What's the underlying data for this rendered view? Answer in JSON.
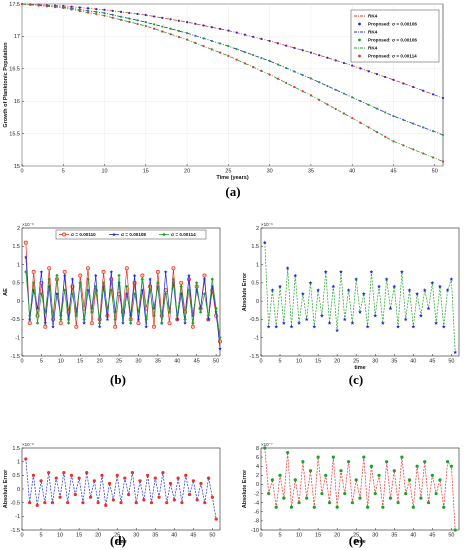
{
  "chart_data": [
    {
      "panel": "(a)",
      "type": "line",
      "xlabel": "Time (years)",
      "ylabel": "Growth of Planktonic Population",
      "xlim": [
        0,
        51
      ],
      "ylim": [
        15,
        17.5
      ],
      "xticks": [
        "0",
        "5",
        "10",
        "15",
        "20",
        "25",
        "30",
        "35",
        "40",
        "45",
        "50"
      ],
      "yticks": [
        "15",
        "15.5",
        "16",
        "16.5",
        "17",
        "17.5"
      ],
      "legend_position": "top-right",
      "grid": true,
      "x": [
        0,
        5,
        10,
        15,
        20,
        25,
        30,
        35,
        40,
        45,
        51
      ],
      "series": [
        {
          "name": "RK4",
          "color": "#e8302a",
          "style": "dashdot",
          "values": [
            17.5,
            17.47,
            17.41,
            17.33,
            17.22,
            17.09,
            16.93,
            16.75,
            16.55,
            16.33,
            16.05
          ]
        },
        {
          "name": "Proposed: σ = 0.00106",
          "color": "#1f2ad6",
          "style": "marker",
          "values": [
            17.5,
            17.47,
            17.41,
            17.33,
            17.22,
            17.09,
            16.93,
            16.75,
            16.55,
            16.33,
            16.05
          ]
        },
        {
          "name": "RK4",
          "color": "#1f2ad6",
          "style": "dashdot",
          "values": [
            17.5,
            17.45,
            17.36,
            17.22,
            17.05,
            16.85,
            16.62,
            16.35,
            16.06,
            15.77,
            15.48
          ]
        },
        {
          "name": "Proposed: σ = 0.00106",
          "color": "#1fa02a",
          "style": "marker",
          "values": [
            17.5,
            17.45,
            17.36,
            17.22,
            17.05,
            16.85,
            16.62,
            16.35,
            16.06,
            15.77,
            15.48
          ]
        },
        {
          "name": "RK4",
          "color": "#1fa02a",
          "style": "dashdot",
          "values": [
            17.5,
            17.44,
            17.32,
            17.16,
            16.95,
            16.7,
            16.41,
            16.09,
            15.74,
            15.38,
            15.07
          ]
        },
        {
          "name": "Proposed: σ = 0.00114",
          "color": "#e8302a",
          "style": "marker",
          "values": [
            17.5,
            17.44,
            17.32,
            17.16,
            16.95,
            16.7,
            16.41,
            16.09,
            15.74,
            15.38,
            15.07
          ]
        }
      ]
    },
    {
      "panel": "(b)",
      "type": "line",
      "xlabel": "",
      "ylabel": "AE",
      "exponent": "×10⁻⁶",
      "xlim": [
        0,
        51
      ],
      "ylim": [
        -1.5,
        2
      ],
      "xticks": [
        "0",
        "5",
        "10",
        "15",
        "20",
        "25",
        "30",
        "35",
        "40",
        "45",
        "50"
      ],
      "yticks": [
        "-1.5",
        "-1",
        "-0.5",
        "0",
        "0.5",
        "1",
        "1.5",
        "2"
      ],
      "legend_position": "top",
      "x": [
        1,
        2,
        3,
        4,
        5,
        6,
        7,
        8,
        9,
        10,
        11,
        12,
        13,
        14,
        15,
        16,
        17,
        18,
        19,
        20,
        21,
        22,
        23,
        24,
        25,
        26,
        27,
        28,
        29,
        30,
        31,
        32,
        33,
        34,
        35,
        36,
        37,
        38,
        39,
        40,
        41,
        42,
        43,
        44,
        45,
        46,
        47,
        48,
        49,
        50,
        51
      ],
      "series": [
        {
          "name": "σ = 0.00110",
          "color": "#e8302a",
          "values": [
            1.6,
            -0.6,
            0.8,
            -0.4,
            0.5,
            -0.7,
            0.9,
            -0.5,
            0.6,
            -0.6,
            0.8,
            -0.3,
            0.4,
            -0.7,
            0.7,
            -0.2,
            0.9,
            -0.6,
            0.3,
            -0.5,
            0.8,
            -0.4,
            0.6,
            -0.7,
            0.2,
            -0.3,
            0.9,
            -0.5,
            0.5,
            -0.6,
            0.7,
            -0.2,
            0.4,
            -0.7,
            0.8,
            -0.4,
            0.3,
            -0.6,
            0.9,
            -0.5,
            0.5,
            -0.3,
            0.6,
            -0.7,
            0.4,
            -0.2,
            0.7,
            -0.5,
            0.3,
            -0.4,
            -1.1
          ]
        },
        {
          "name": "σ = 0.00108",
          "color": "#1f2ad6",
          "values": [
            1.2,
            -0.5,
            0.3,
            -0.2,
            0.8,
            -0.6,
            0.4,
            -0.7,
            0.2,
            -0.4,
            0.7,
            -0.5,
            0.6,
            -0.3,
            0.5,
            -0.6,
            0.3,
            -0.2,
            0.7,
            -0.7,
            0.4,
            -0.5,
            0.8,
            -0.3,
            0.5,
            -0.6,
            0.2,
            -0.4,
            0.7,
            -0.5,
            0.3,
            -0.7,
            0.6,
            -0.2,
            0.4,
            -0.6,
            0.8,
            -0.3,
            0.5,
            -0.5,
            0.2,
            -0.6,
            0.7,
            -0.4,
            0.3,
            -0.2,
            0.6,
            -0.5,
            0.4,
            -0.3,
            -1.3
          ]
        },
        {
          "name": "σ = 0.00114",
          "color": "#1fa02a",
          "values": [
            0.8,
            -0.4,
            0.5,
            -0.6,
            0.2,
            -0.3,
            0.6,
            -0.4,
            0.7,
            -0.5,
            0.3,
            -0.6,
            0.2,
            -0.4,
            0.5,
            -0.5,
            0.6,
            -0.3,
            0.4,
            -0.6,
            0.5,
            -0.2,
            0.3,
            -0.5,
            0.7,
            -0.4,
            0.4,
            -0.6,
            0.2,
            -0.3,
            0.6,
            -0.5,
            0.3,
            -0.4,
            0.5,
            -0.6,
            0.2,
            -0.3,
            0.6,
            -0.4,
            0.4,
            -0.5,
            0.3,
            -0.6,
            0.5,
            -0.3,
            0.2,
            -0.4,
            0.6,
            -0.2,
            -1.0
          ]
        }
      ]
    },
    {
      "panel": "(c)",
      "type": "line",
      "xlabel": "time",
      "ylabel": "Absolute Error",
      "exponent": "×10⁻⁶",
      "xlim": [
        0,
        52
      ],
      "ylim": [
        -1.5,
        2
      ],
      "xticks": [
        "0",
        "5",
        "10",
        "15",
        "20",
        "25",
        "30",
        "35",
        "40",
        "45",
        "50"
      ],
      "yticks": [
        "-1.5",
        "-1",
        "-0.5",
        "0",
        "0.5",
        "1",
        "1.5",
        "2"
      ],
      "marker_color": "#1f2ad6",
      "line_color": "#1fa02a",
      "x": [
        1,
        2,
        3,
        4,
        5,
        6,
        7,
        8,
        9,
        10,
        11,
        12,
        13,
        14,
        15,
        16,
        17,
        18,
        19,
        20,
        21,
        22,
        23,
        24,
        25,
        26,
        27,
        28,
        29,
        30,
        31,
        32,
        33,
        34,
        35,
        36,
        37,
        38,
        39,
        40,
        41,
        42,
        43,
        44,
        45,
        46,
        47,
        48,
        49,
        50,
        51
      ],
      "values": [
        1.6,
        -0.7,
        0.3,
        -0.7,
        0.4,
        -0.6,
        0.9,
        -0.7,
        0.7,
        -0.6,
        0.2,
        -0.5,
        0.5,
        -0.7,
        0.3,
        -0.4,
        0.8,
        -0.6,
        0.4,
        -0.8,
        0.8,
        -0.5,
        0.3,
        -0.6,
        0.6,
        -0.3,
        0.2,
        -0.7,
        0.8,
        -0.4,
        0.4,
        -0.6,
        0.6,
        -0.2,
        0.4,
        -0.7,
        0.8,
        -0.5,
        0.3,
        -0.7,
        0.2,
        -0.4,
        0.3,
        -0.2,
        0.5,
        -0.6,
        0.4,
        -0.7,
        0.3,
        0.6,
        -1.4
      ]
    },
    {
      "panel": "(d)",
      "type": "line",
      "xlabel": "time",
      "ylabel": "Absolute Error",
      "exponent": "×10⁻⁶",
      "xlim": [
        0,
        52
      ],
      "ylim": [
        -1.5,
        1.5
      ],
      "xticks": [
        "0",
        "5",
        "10",
        "15",
        "20",
        "25",
        "30",
        "35",
        "40",
        "45",
        "50"
      ],
      "yticks": [
        "-1.5",
        "-1",
        "-0.5",
        "0",
        "0.5",
        "1",
        "1.5"
      ],
      "marker_color": "#e8302a",
      "line_color": "#1f2ad6",
      "x": [
        1,
        2,
        3,
        4,
        5,
        6,
        7,
        8,
        9,
        10,
        11,
        12,
        13,
        14,
        15,
        16,
        17,
        18,
        19,
        20,
        21,
        22,
        23,
        24,
        25,
        26,
        27,
        28,
        29,
        30,
        31,
        32,
        33,
        34,
        35,
        36,
        37,
        38,
        39,
        40,
        41,
        42,
        43,
        44,
        45,
        46,
        47,
        48,
        49,
        50,
        51
      ],
      "values": [
        1.1,
        -0.5,
        0.5,
        -0.6,
        0.3,
        -0.5,
        0.6,
        -0.5,
        0.4,
        -0.3,
        0.6,
        -0.5,
        0.5,
        -0.2,
        0.4,
        -0.5,
        0.6,
        -0.3,
        0.3,
        -0.5,
        0.5,
        -0.6,
        0.2,
        -0.4,
        0.5,
        -0.5,
        0.4,
        -0.2,
        0.6,
        -0.5,
        0.3,
        -0.4,
        0.5,
        -0.5,
        0.4,
        -0.3,
        0.6,
        -0.5,
        0.2,
        -0.4,
        0.4,
        -0.5,
        0.5,
        -0.2,
        0.3,
        -0.4,
        0.2,
        -0.5,
        0.4,
        -0.3,
        -1.1
      ]
    },
    {
      "panel": "(e)",
      "type": "line",
      "xlabel": "time",
      "ylabel": "Absolute Error",
      "exponent": "×10⁻⁷",
      "xlim": [
        0,
        52
      ],
      "ylim": [
        -10,
        8
      ],
      "xticks": [
        "0",
        "5",
        "10",
        "15",
        "20",
        "25",
        "30",
        "35",
        "40",
        "45",
        "50"
      ],
      "yticks": [
        "-10",
        "-8",
        "-6",
        "-4",
        "-2",
        "0",
        "2",
        "4",
        "6",
        "8"
      ],
      "marker_color": "#1fa02a",
      "line_color": "#e8302a",
      "x": [
        1,
        2,
        3,
        4,
        5,
        6,
        7,
        8,
        9,
        10,
        11,
        12,
        13,
        14,
        15,
        16,
        17,
        18,
        19,
        20,
        21,
        22,
        23,
        24,
        25,
        26,
        27,
        28,
        29,
        30,
        31,
        32,
        33,
        34,
        35,
        36,
        37,
        38,
        39,
        40,
        41,
        42,
        43,
        44,
        45,
        46,
        47,
        48,
        49,
        50,
        51
      ],
      "values": [
        8,
        -2,
        1,
        -5,
        2,
        -3,
        7,
        -5,
        1,
        -4,
        5,
        -3,
        3,
        -5,
        6,
        -2,
        2,
        -4,
        6,
        -5,
        3,
        -2,
        5,
        -4,
        1,
        -3,
        6,
        -5,
        4,
        -2,
        2,
        -5,
        5,
        -3,
        3,
        -4,
        6,
        -2,
        1,
        -5,
        4,
        -3,
        5,
        -4,
        2,
        -2,
        1,
        -5,
        5,
        4,
        -10
      ]
    }
  ],
  "captions": {
    "a": "(a)",
    "b": "(b)",
    "c": "(c)",
    "d": "(d)",
    "e": "(e)"
  }
}
